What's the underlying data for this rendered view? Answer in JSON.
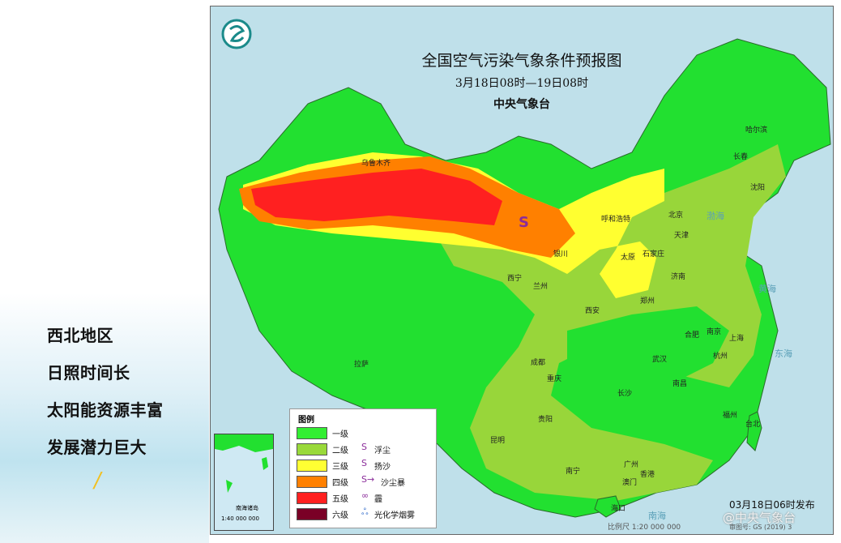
{
  "captions": [
    "西北地区",
    "日照时间长",
    "太阳能资源丰富",
    "发展潜力巨大"
  ],
  "decor_slash": "/",
  "map": {
    "title": "全国空气污染气象条件预报图",
    "subtitle": "3月18日08时—19日08时",
    "agency": "中央气象台",
    "cities": [
      "乌鲁木齐",
      "哈尔滨",
      "长春",
      "沈阳",
      "呼和浩特",
      "北京",
      "天津",
      "银川",
      "太原",
      "石家庄",
      "济南",
      "西宁",
      "兰州",
      "郑州",
      "西安",
      "合肥",
      "南京",
      "上海",
      "拉萨",
      "成都",
      "武汉",
      "杭州",
      "重庆",
      "南昌",
      "长沙",
      "福州",
      "贵阳",
      "台北",
      "昆明",
      "南宁",
      "广州",
      "香港",
      "澳门",
      "海口"
    ],
    "sea_labels": [
      "渤海",
      "黄海",
      "东海",
      "南海"
    ],
    "legend": {
      "title": "图例",
      "levels": [
        {
          "label": "一级",
          "color": "#33ee33"
        },
        {
          "label": "二级",
          "color": "#99d93a"
        },
        {
          "label": "三级",
          "color": "#ffff33"
        },
        {
          "label": "四级",
          "color": "#ff8000"
        },
        {
          "label": "五级",
          "color": "#ff2020"
        },
        {
          "label": "六级",
          "color": "#7a0026"
        }
      ],
      "symbols": [
        {
          "glyph": "S",
          "label": "浮尘"
        },
        {
          "glyph": "S",
          "label": "扬沙"
        },
        {
          "glyph": "S→",
          "label": "沙尘暴"
        },
        {
          "glyph": "∞",
          "label": "霾"
        },
        {
          "glyph": "ஃ",
          "label": "光化学烟雾"
        }
      ]
    },
    "map_symbol": "S",
    "inset": {
      "label": "南海诸岛",
      "scale": "1:40 000 000"
    },
    "scale_text": "比例尺 1:20 000 000",
    "map_number": "审图号: GS (2019) 3",
    "publish": "03月18日06时发布",
    "watermark": "@中央气象台"
  }
}
